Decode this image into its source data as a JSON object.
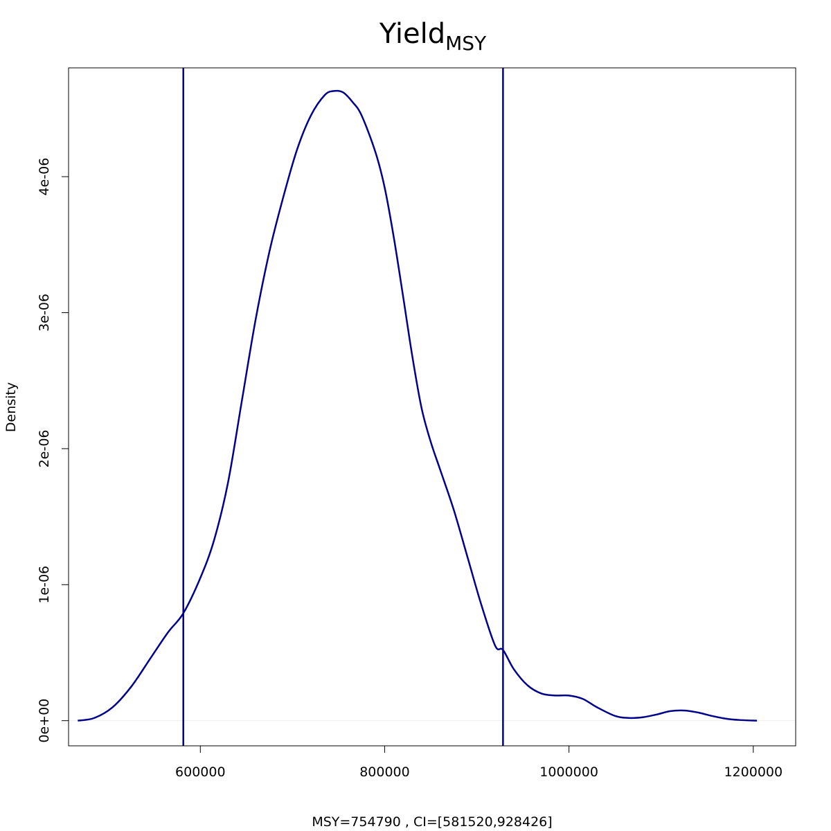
{
  "chart_data": {
    "type": "line",
    "title": "Yield",
    "title_subscript": "MSY",
    "xlabel": "MSY=754790 , CI=[581520,928426]",
    "ylabel": "Density",
    "xlim": [
      457000,
      1246000
    ],
    "ylim": [
      -1.85e-07,
      4.8e-06
    ],
    "x_ticks": [
      600000,
      800000,
      1000000,
      1200000
    ],
    "x_tick_labels": [
      "600000",
      "800000",
      "1000000",
      "1200000"
    ],
    "y_ticks": [
      0,
      1e-06,
      2e-06,
      3e-06,
      4e-06
    ],
    "y_tick_labels": [
      "0e+00",
      "1e-06",
      "2e-06",
      "3e-06",
      "4e-06"
    ],
    "line_color": "#00008b",
    "baseline_color": "#eeeeee",
    "vlines": [
      {
        "name": "ci-lower",
        "x": 581520
      },
      {
        "name": "ci-upper",
        "x": 928426
      }
    ],
    "series": [
      {
        "x": [
          467000,
          485000,
          505000,
          525000,
          545000,
          565000,
          581520,
          600000,
          615000,
          630000,
          645000,
          660000,
          675000,
          690000,
          705000,
          720000,
          735000,
          745000,
          754790,
          765000,
          775000,
          790000,
          800000,
          810000,
          820000,
          830000,
          840000,
          850000,
          860000,
          875000,
          890000,
          905000,
          920000,
          928426,
          940000,
          955000,
          970000,
          985000,
          1000000,
          1015000,
          1030000,
          1050000,
          1065000,
          1080000,
          1095000,
          1110000,
          1125000,
          1140000,
          1155000,
          1170000,
          1185000,
          1204000
        ],
        "y": [
          0.0,
          2e-08,
          1e-07,
          2.5e-07,
          4.5e-07,
          6.5e-07,
          7.9e-07,
          1.05e-06,
          1.33e-06,
          1.75e-06,
          2.35e-06,
          2.95e-06,
          3.45e-06,
          3.85e-06,
          4.2e-06,
          4.45e-06,
          4.6e-06,
          4.63e-06,
          4.62e-06,
          4.55e-06,
          4.45e-06,
          4.18e-06,
          3.92e-06,
          3.55e-06,
          3.12e-06,
          2.68e-06,
          2.3e-06,
          2.05e-06,
          1.85e-06,
          1.55e-06,
          1.2e-06,
          8.5e-07,
          5.5e-07,
          5.2e-07,
          3.8e-07,
          2.6e-07,
          2e-07,
          1.85e-07,
          1.85e-07,
          1.6e-07,
          1e-07,
          3.5e-08,
          2e-08,
          2.5e-08,
          4.5e-08,
          7e-08,
          7.5e-08,
          6e-08,
          3.5e-08,
          1.5e-08,
          5e-09,
          0.0
        ]
      }
    ]
  }
}
